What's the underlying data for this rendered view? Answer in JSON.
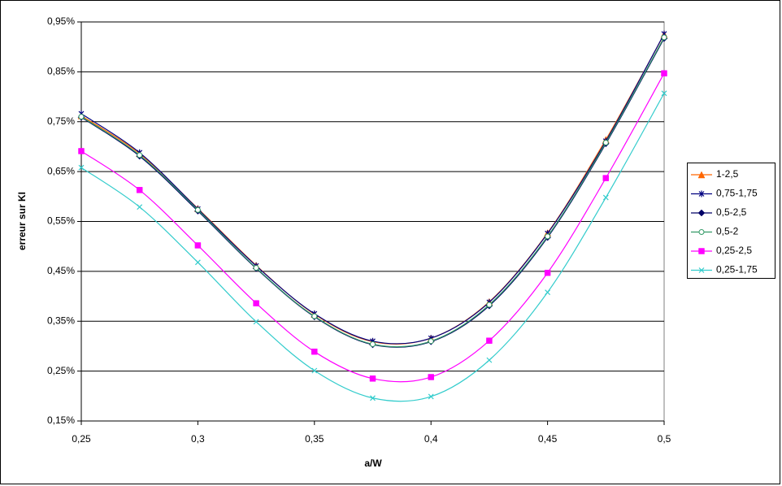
{
  "chart_data": {
    "type": "line",
    "x_label": "a/W",
    "y_label": "erreur sur KI",
    "x": [
      0.25,
      0.275,
      0.3,
      0.325,
      0.35,
      0.375,
      0.4,
      0.425,
      0.45,
      0.475,
      0.5
    ],
    "series": [
      {
        "name": "1-2,5",
        "color": "#ff6600",
        "marker": "triangle",
        "values": [
          0.762,
          0.686,
          0.576,
          0.462,
          0.364,
          0.309,
          0.316,
          0.389,
          0.527,
          0.714,
          0.925
        ]
      },
      {
        "name": "0,75-1,75",
        "color": "#000080",
        "marker": "star",
        "values": [
          0.766,
          0.688,
          0.575,
          0.461,
          0.365,
          0.31,
          0.316,
          0.388,
          0.526,
          0.711,
          0.926
        ]
      },
      {
        "name": "0,5-2,5",
        "color": "#000066",
        "marker": "diamond",
        "values": [
          0.759,
          0.681,
          0.571,
          0.456,
          0.359,
          0.303,
          0.309,
          0.381,
          0.518,
          0.706,
          0.917
        ]
      },
      {
        "name": "0,5-2",
        "color": "#339966",
        "marker": "circle",
        "values": [
          0.76,
          0.683,
          0.573,
          0.457,
          0.36,
          0.304,
          0.31,
          0.383,
          0.52,
          0.708,
          0.919
        ]
      },
      {
        "name": "0,25-2,5",
        "color": "#ff00ff",
        "marker": "square",
        "values": [
          0.691,
          0.613,
          0.502,
          0.386,
          0.289,
          0.235,
          0.238,
          0.311,
          0.447,
          0.637,
          0.847
        ]
      },
      {
        "name": "0,25-1,75",
        "color": "#33cccc",
        "marker": "x",
        "values": [
          0.658,
          0.579,
          0.468,
          0.349,
          0.251,
          0.196,
          0.199,
          0.272,
          0.408,
          0.598,
          0.807
        ]
      }
    ],
    "xlim": [
      0.25,
      0.5
    ],
    "xticks": [
      {
        "value": 0.25,
        "label": "0,25"
      },
      {
        "value": 0.3,
        "label": "0,3"
      },
      {
        "value": 0.35,
        "label": "0,35"
      },
      {
        "value": 0.4,
        "label": "0,4"
      },
      {
        "value": 0.45,
        "label": "0,45"
      },
      {
        "value": 0.5,
        "label": "0,5"
      }
    ],
    "ylim": [
      0.15,
      0.95
    ],
    "yticks": [
      {
        "value": 0.15,
        "label": "0,15%"
      },
      {
        "value": 0.25,
        "label": "0,25%"
      },
      {
        "value": 0.35,
        "label": "0,35%"
      },
      {
        "value": 0.45,
        "label": "0,45%"
      },
      {
        "value": 0.55,
        "label": "0,55%"
      },
      {
        "value": 0.65,
        "label": "0,65%"
      },
      {
        "value": 0.75,
        "label": "0,75%"
      },
      {
        "value": 0.85,
        "label": "0,85%"
      },
      {
        "value": 0.95,
        "label": "0,95%"
      }
    ],
    "grid": true,
    "smooth": true,
    "legend": "right"
  }
}
